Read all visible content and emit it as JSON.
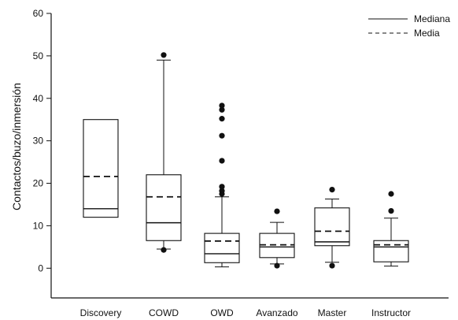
{
  "chart_data": {
    "type": "boxplot",
    "ylabel": "Contactos/buzo/inmersión",
    "ylim": [
      -7,
      60
    ],
    "yticks": [
      0,
      10,
      20,
      30,
      40,
      50,
      60
    ],
    "categories": [
      "Discovery",
      "COWD",
      "OWD",
      "Avanzado",
      "Master",
      "Instructor"
    ],
    "legend": {
      "position": "top-right",
      "items": [
        {
          "label": "Mediana",
          "style": "solid"
        },
        {
          "label": "Media",
          "style": "dashed"
        }
      ]
    },
    "boxes": [
      {
        "category": "Discovery",
        "q1": 12,
        "median": 14,
        "q3": 35,
        "mean": 21.6,
        "whisker_low": null,
        "whisker_high": null,
        "outliers": []
      },
      {
        "category": "COWD",
        "q1": 6.5,
        "median": 10.7,
        "q3": 22,
        "mean": 16.8,
        "whisker_low": 4.5,
        "whisker_high": 49,
        "outliers": [
          4.3,
          50.2
        ]
      },
      {
        "category": "OWD",
        "q1": 1.3,
        "median": 3.4,
        "q3": 8.2,
        "mean": 6.4,
        "whisker_low": 0.3,
        "whisker_high": 16.8,
        "outliers": [
          17.5,
          18.2,
          19.2,
          25.3,
          31.2,
          35.2,
          37.3,
          38.3
        ]
      },
      {
        "category": "Avanzado",
        "q1": 2.5,
        "median": 5.0,
        "q3": 8.2,
        "mean": 5.5,
        "whisker_low": 1.0,
        "whisker_high": 10.8,
        "outliers": [
          0.6,
          13.4
        ]
      },
      {
        "category": "Master",
        "q1": 5.3,
        "median": 6.2,
        "q3": 14.2,
        "mean": 8.7,
        "whisker_low": 1.4,
        "whisker_high": 16.3,
        "outliers": [
          0.6,
          18.5
        ]
      },
      {
        "category": "Instructor",
        "q1": 1.5,
        "median": 5.0,
        "q3": 6.5,
        "mean": 5.5,
        "whisker_low": 0.5,
        "whisker_high": 11.8,
        "outliers": [
          13.5,
          17.5
        ]
      }
    ]
  }
}
